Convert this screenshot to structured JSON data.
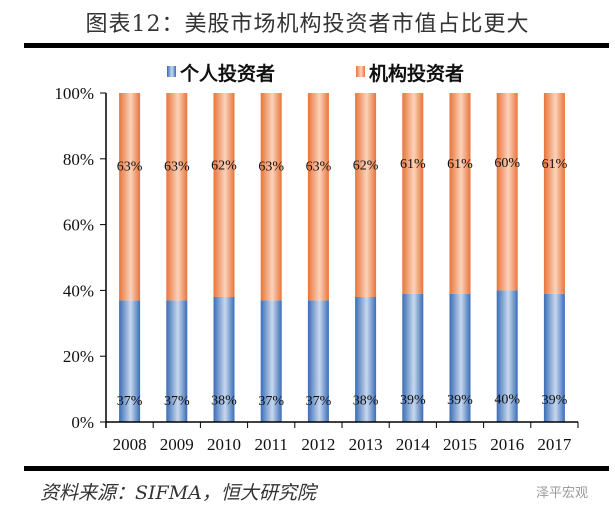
{
  "title": "图表12：美股市场机构投资者市值占比更大",
  "source": "资料来源：SIFMA，恒大研究院",
  "watermark": "泽平宏观",
  "chart_data": {
    "type": "bar",
    "stacked": true,
    "categories": [
      "2008",
      "2009",
      "2010",
      "2011",
      "2012",
      "2013",
      "2014",
      "2015",
      "2016",
      "2017"
    ],
    "series": [
      {
        "name": "个人投资者",
        "values": [
          37,
          37,
          38,
          37,
          37,
          38,
          39,
          39,
          40,
          39
        ],
        "color": "#4a7fc6"
      },
      {
        "name": "机构投资者",
        "values": [
          63,
          63,
          62,
          63,
          63,
          62,
          61,
          61,
          60,
          61
        ],
        "color": "#ef8a4f"
      }
    ],
    "ylim": [
      0,
      100
    ],
    "yticks": [
      "0%",
      "20%",
      "40%",
      "60%",
      "80%",
      "100%"
    ],
    "legend": "top",
    "grid": false
  }
}
